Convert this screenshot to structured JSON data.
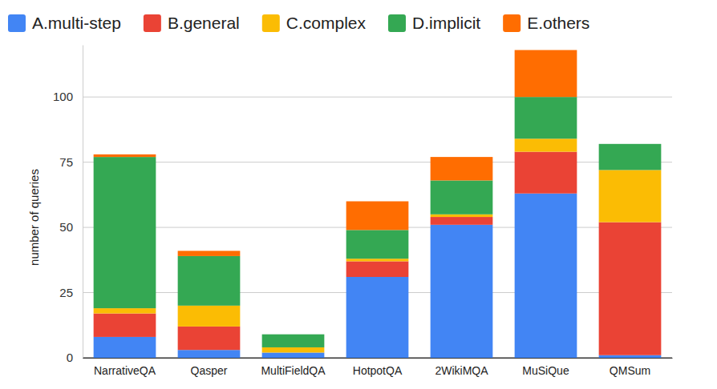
{
  "chart_data": {
    "type": "bar",
    "stacked": true,
    "grid": true,
    "legend": "top",
    "y_label": "number of queries",
    "categories": [
      "NarrativeQA",
      "Qasper",
      "MultiFieldQA",
      "HotpotQA",
      "2WikiMQA",
      "MuSiQue",
      "QMSum"
    ],
    "ylim": [
      0,
      120
    ],
    "yticks": [
      0,
      25,
      50,
      75,
      100
    ],
    "series": [
      {
        "name": "A.multi-step",
        "color": "#4285f4",
        "values": [
          8,
          3,
          2,
          31,
          51,
          63,
          1
        ]
      },
      {
        "name": "B.general",
        "color": "#ea4335",
        "values": [
          9,
          9,
          0,
          6,
          3,
          16,
          51
        ]
      },
      {
        "name": "C.complex",
        "color": "#fbbc04",
        "values": [
          2,
          8,
          2,
          1,
          1,
          5,
          20
        ]
      },
      {
        "name": "D.implicit",
        "color": "#34a853",
        "values": [
          58,
          19,
          5,
          11,
          13,
          16,
          10
        ]
      },
      {
        "name": "E.others",
        "color": "#ff6d01",
        "values": [
          1,
          2,
          0,
          11,
          9,
          18,
          0
        ]
      }
    ]
  }
}
